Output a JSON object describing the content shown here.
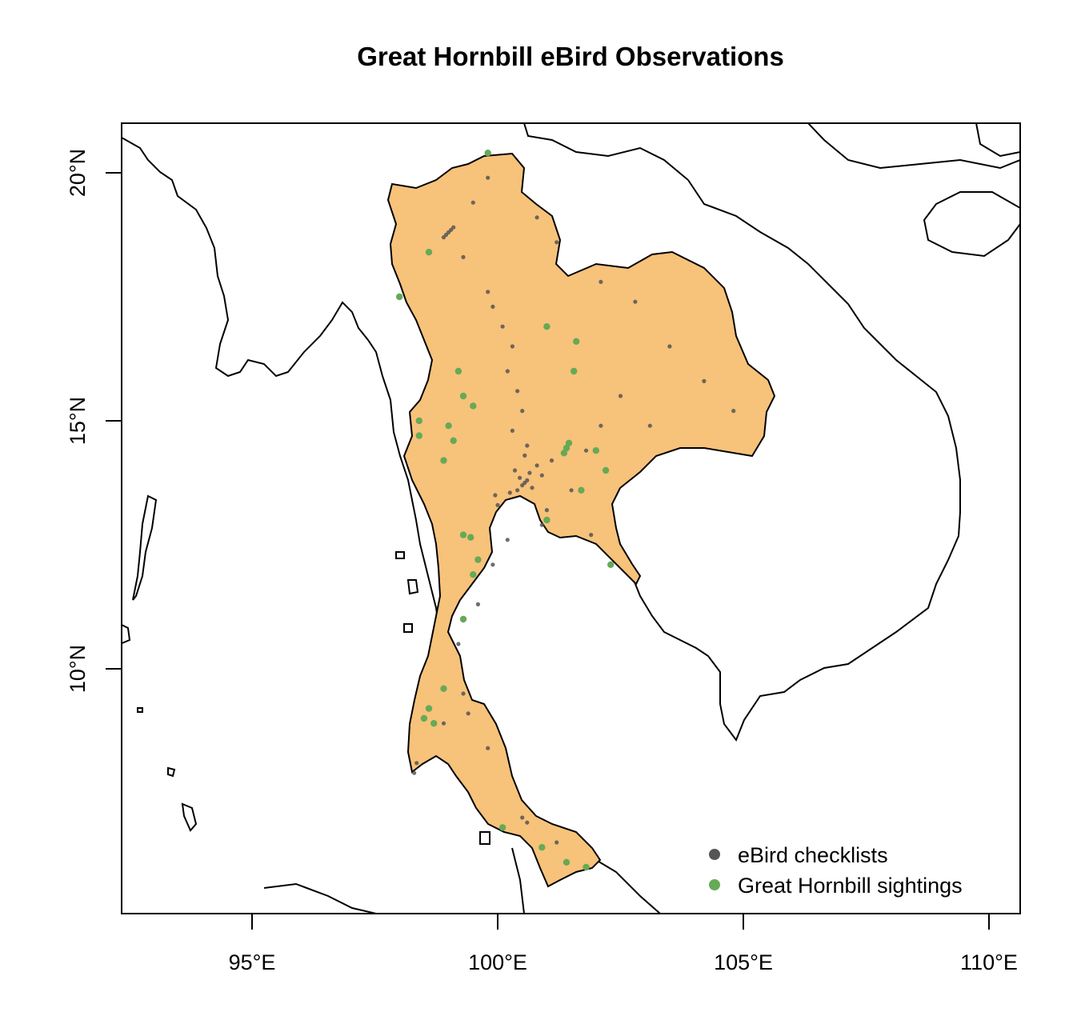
{
  "title": "Great Hornbill eBird Observations",
  "axes": {
    "x_ticks": [
      "95°E",
      "100°E",
      "105°E",
      "110°E"
    ],
    "y_ticks": [
      "20°N",
      "15°N",
      "10°N"
    ]
  },
  "legend": {
    "position": "bottom-right",
    "items": [
      {
        "label": "eBird checklists",
        "color": "#555555"
      },
      {
        "label": "Great Hornbill sightings",
        "color": "#66aa55"
      }
    ]
  },
  "colors": {
    "land_fill": "#f7c27a",
    "coast": "#000000",
    "checklist": "#555555",
    "sighting": "#66aa55"
  },
  "chart_data": {
    "type": "scatter",
    "title": "Great Hornbill eBird Observations",
    "xlim": [
      92.3,
      110.6
    ],
    "ylim": [
      5.0,
      21.0
    ],
    "x_ticks": [
      95,
      100,
      105,
      110
    ],
    "y_ticks": [
      10,
      15,
      20
    ],
    "series": [
      {
        "name": "eBird checklists",
        "color": "#555555",
        "points": [
          [
            100.55,
            13.75
          ],
          [
            100.6,
            13.8
          ],
          [
            100.5,
            13.7
          ],
          [
            100.45,
            13.85
          ],
          [
            100.7,
            13.65
          ],
          [
            100.4,
            13.6
          ],
          [
            100.65,
            13.95
          ],
          [
            100.35,
            14.0
          ],
          [
            100.8,
            14.1
          ],
          [
            100.55,
            14.3
          ],
          [
            100.6,
            14.5
          ],
          [
            100.3,
            14.8
          ],
          [
            100.5,
            15.2
          ],
          [
            100.4,
            15.6
          ],
          [
            100.2,
            16.0
          ],
          [
            100.3,
            16.5
          ],
          [
            100.1,
            16.9
          ],
          [
            99.9,
            17.3
          ],
          [
            99.8,
            17.6
          ],
          [
            99.0,
            18.8
          ],
          [
            98.95,
            18.75
          ],
          [
            99.05,
            18.85
          ],
          [
            98.9,
            18.7
          ],
          [
            99.1,
            18.9
          ],
          [
            99.3,
            18.3
          ],
          [
            99.8,
            19.9
          ],
          [
            99.5,
            19.4
          ],
          [
            100.8,
            19.1
          ],
          [
            101.2,
            18.6
          ],
          [
            102.8,
            17.4
          ],
          [
            102.1,
            17.8
          ],
          [
            103.5,
            16.5
          ],
          [
            104.2,
            15.8
          ],
          [
            104.8,
            15.2
          ],
          [
            102.1,
            14.9
          ],
          [
            101.8,
            14.4
          ],
          [
            102.5,
            15.5
          ],
          [
            103.1,
            14.9
          ],
          [
            101.5,
            13.6
          ],
          [
            101.0,
            13.2
          ],
          [
            101.9,
            12.7
          ],
          [
            100.9,
            12.9
          ],
          [
            100.2,
            12.6
          ],
          [
            99.9,
            12.1
          ],
          [
            99.6,
            11.3
          ],
          [
            99.2,
            10.5
          ],
          [
            99.3,
            9.5
          ],
          [
            98.3,
            7.9
          ],
          [
            98.35,
            8.1
          ],
          [
            99.8,
            8.4
          ],
          [
            100.5,
            7.0
          ],
          [
            100.6,
            6.9
          ],
          [
            101.2,
            6.5
          ],
          [
            98.9,
            8.9
          ],
          [
            99.4,
            9.1
          ],
          [
            100.0,
            13.3
          ],
          [
            99.95,
            13.5
          ],
          [
            100.25,
            13.55
          ],
          [
            100.9,
            13.9
          ],
          [
            101.1,
            14.2
          ]
        ]
      },
      {
        "name": "Great Hornbill sightings",
        "color": "#66aa55",
        "points": [
          [
            101.4,
            14.45
          ],
          [
            101.35,
            14.35
          ],
          [
            101.45,
            14.55
          ],
          [
            99.3,
            12.7
          ],
          [
            99.45,
            12.65
          ],
          [
            99.6,
            12.2
          ],
          [
            99.5,
            11.9
          ],
          [
            98.6,
            9.2
          ],
          [
            98.5,
            9.0
          ],
          [
            98.7,
            8.9
          ],
          [
            99.3,
            15.5
          ],
          [
            99.5,
            15.3
          ],
          [
            99.1,
            14.6
          ],
          [
            99.0,
            14.9
          ],
          [
            101.0,
            13.0
          ],
          [
            102.3,
            12.1
          ],
          [
            102.2,
            14.0
          ],
          [
            101.6,
            16.6
          ],
          [
            101.55,
            16.0
          ],
          [
            101.7,
            13.6
          ],
          [
            98.6,
            18.4
          ],
          [
            99.8,
            20.4
          ],
          [
            101.4,
            6.1
          ],
          [
            101.8,
            6.0
          ],
          [
            100.9,
            6.4
          ],
          [
            100.1,
            6.8
          ],
          [
            98.9,
            9.6
          ],
          [
            99.3,
            11.0
          ],
          [
            98.4,
            14.7
          ],
          [
            102.0,
            14.4
          ],
          [
            98.0,
            17.5
          ],
          [
            101.0,
            16.9
          ],
          [
            98.9,
            14.2
          ],
          [
            99.2,
            16.0
          ],
          [
            98.4,
            15.0
          ]
        ]
      }
    ]
  }
}
